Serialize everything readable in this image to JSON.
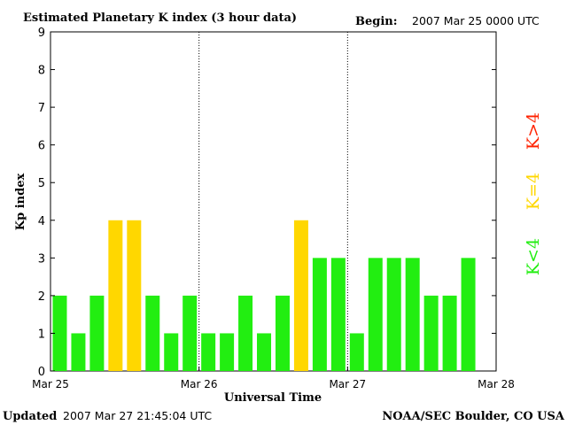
{
  "header": {
    "title": "Estimated Planetary K index (3 hour data)",
    "begin_label": "Begin:",
    "begin_value": "2007 Mar 25 0000 UTC"
  },
  "footer": {
    "updated_label": "Updated",
    "updated_value": "2007 Mar 27 21:45:04 UTC",
    "source": "NOAA/SEC Boulder, CO USA"
  },
  "legend": {
    "high": "K>4",
    "mid": "K=4",
    "low": "K<4"
  },
  "colors": {
    "low": "#22ee11",
    "mid": "#ffd700",
    "high": "#ff2200",
    "frame": "#000000"
  },
  "chart_data": {
    "type": "bar",
    "title": "Estimated Planetary K index (3 hour data)",
    "xlabel": "Universal Time",
    "ylabel": "Kp index",
    "ylim": [
      0,
      9
    ],
    "yticks": [
      0,
      1,
      2,
      3,
      4,
      5,
      6,
      7,
      8,
      9
    ],
    "xticks": [
      "Mar 25",
      "Mar 26",
      "Mar 27",
      "Mar 28"
    ],
    "interval_hours": 3,
    "day_dividers": [
      "Mar 26",
      "Mar 27"
    ],
    "values": [
      2,
      1,
      2,
      4,
      4,
      2,
      1,
      2,
      1,
      1,
      2,
      1,
      2,
      4,
      3,
      3,
      1,
      3,
      3,
      3,
      2,
      2,
      3
    ],
    "color_rule": "K<4 green, K=4 yellow, K>4 red"
  }
}
